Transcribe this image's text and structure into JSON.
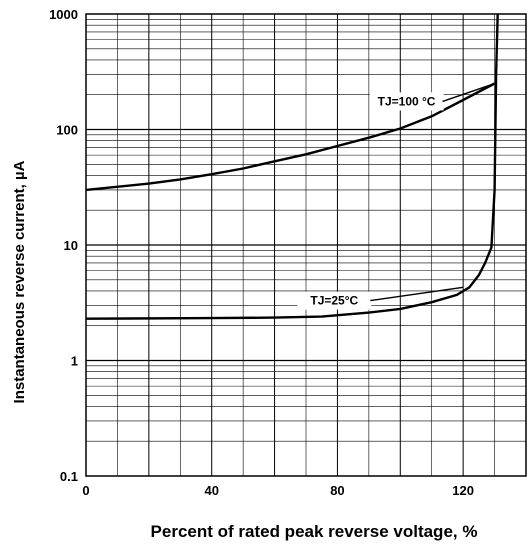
{
  "chart_data": {
    "type": "line",
    "title": "",
    "xlabel": "Percent of rated peak reverse voltage, %",
    "ylabel": "Instantaneous reverse current, µA",
    "xlim": [
      0,
      140
    ],
    "ylim": [
      0.1,
      1000
    ],
    "yscale": "log",
    "grid": true,
    "x_tick_labels": [
      "0",
      "40",
      "80",
      "120"
    ],
    "y_tick_labels": [
      "0.1",
      "1",
      "10",
      "100",
      "1000"
    ],
    "series": [
      {
        "name": "TJ=100 °C",
        "points": [
          [
            0,
            30
          ],
          [
            20,
            34
          ],
          [
            30,
            37
          ],
          [
            40,
            41
          ],
          [
            50,
            46
          ],
          [
            60,
            53
          ],
          [
            70,
            61
          ],
          [
            80,
            72
          ],
          [
            90,
            85
          ],
          [
            100,
            102
          ],
          [
            110,
            130
          ],
          [
            120,
            180
          ],
          [
            130,
            250
          ]
        ]
      },
      {
        "name": "TJ=25°C",
        "points": [
          [
            0,
            2.3
          ],
          [
            40,
            2.33
          ],
          [
            60,
            2.35
          ],
          [
            75,
            2.4
          ],
          [
            90,
            2.6
          ],
          [
            100,
            2.8
          ],
          [
            110,
            3.2
          ],
          [
            118,
            3.7
          ],
          [
            122,
            4.3
          ],
          [
            125,
            5.5
          ],
          [
            127,
            7
          ],
          [
            129,
            9.5
          ],
          [
            130,
            30
          ],
          [
            130.5,
            300
          ],
          [
            131,
            1000
          ]
        ]
      }
    ],
    "annotations": [
      "TJ=100 °C",
      "TJ=25°C"
    ]
  }
}
